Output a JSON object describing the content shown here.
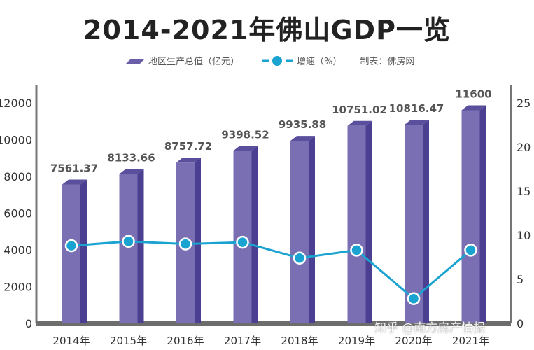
{
  "chart_data": {
    "type": "bar+line",
    "title": "2014-2021年佛山GDP一览",
    "categories": [
      "2014年",
      "2015年",
      "2016年",
      "2017年",
      "2018年",
      "2019年",
      "2020年",
      "2021年"
    ],
    "series": [
      {
        "name": "地区生产总值（亿元）",
        "type": "bar",
        "axis": "left",
        "color": "#7b6fb3",
        "values": [
          7561.37,
          8133.66,
          8757.72,
          9398.52,
          9935.88,
          10751.02,
          10816.47,
          11600
        ],
        "labels": [
          "7561.37",
          "8133.66",
          "8757.72",
          "9398.52",
          "9935.88",
          "10751.02",
          "10816.47",
          "11600"
        ]
      },
      {
        "name": "增速（%）",
        "type": "line",
        "axis": "right",
        "color": "#1aa3d0",
        "values": [
          8.8,
          9.3,
          9.0,
          9.2,
          7.4,
          8.3,
          2.8,
          8.3
        ]
      }
    ],
    "y_left": {
      "range": [
        0,
        12000
      ],
      "ticks": [
        "0",
        "2000",
        "4000",
        "6000",
        "8000",
        "10000",
        "12000"
      ]
    },
    "y_right": {
      "range": [
        0,
        25
      ],
      "ticks": [
        "0",
        "5",
        "10",
        "15",
        "20",
        "25"
      ]
    },
    "legend_placement": "top",
    "grid": false
  },
  "legend": {
    "bar_label": "地区生产总值（亿元）",
    "line_label": "增速（%）",
    "source": "制表：佛房网"
  },
  "watermark": "知乎 @南方房产情报"
}
